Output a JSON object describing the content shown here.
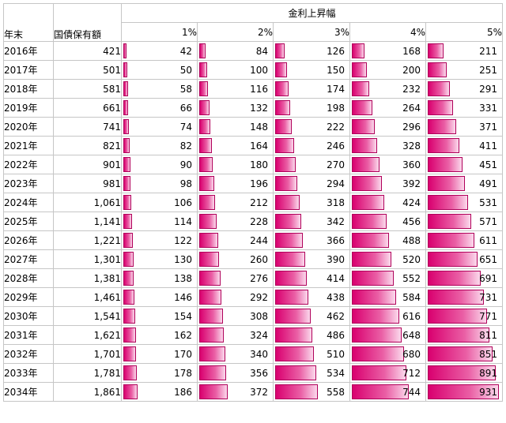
{
  "header": {
    "year_label": "年末",
    "holding_label": "国債保有額",
    "group_label": "金利上昇幅"
  },
  "rate_columns": [
    "1%",
    "2%",
    "3%",
    "4%",
    "5%"
  ],
  "bar_color": "#d9006f",
  "rows": [
    {
      "year": "2016年",
      "holding": "421",
      "values": [
        "42",
        "84",
        "126",
        "168",
        "211"
      ]
    },
    {
      "year": "2017年",
      "holding": "501",
      "values": [
        "50",
        "100",
        "150",
        "200",
        "251"
      ]
    },
    {
      "year": "2018年",
      "holding": "581",
      "values": [
        "58",
        "116",
        "174",
        "232",
        "291"
      ]
    },
    {
      "year": "2019年",
      "holding": "661",
      "values": [
        "66",
        "132",
        "198",
        "264",
        "331"
      ]
    },
    {
      "year": "2020年",
      "holding": "741",
      "values": [
        "74",
        "148",
        "222",
        "296",
        "371"
      ]
    },
    {
      "year": "2021年",
      "holding": "821",
      "values": [
        "82",
        "164",
        "246",
        "328",
        "411"
      ]
    },
    {
      "year": "2022年",
      "holding": "901",
      "values": [
        "90",
        "180",
        "270",
        "360",
        "451"
      ]
    },
    {
      "year": "2023年",
      "holding": "981",
      "values": [
        "98",
        "196",
        "294",
        "392",
        "491"
      ]
    },
    {
      "year": "2024年",
      "holding": "1,061",
      "values": [
        "106",
        "212",
        "318",
        "424",
        "531"
      ]
    },
    {
      "year": "2025年",
      "holding": "1,141",
      "values": [
        "114",
        "228",
        "342",
        "456",
        "571"
      ]
    },
    {
      "year": "2026年",
      "holding": "1,221",
      "values": [
        "122",
        "244",
        "366",
        "488",
        "611"
      ]
    },
    {
      "year": "2027年",
      "holding": "1,301",
      "values": [
        "130",
        "260",
        "390",
        "520",
        "651"
      ]
    },
    {
      "year": "2028年",
      "holding": "1,381",
      "values": [
        "138",
        "276",
        "414",
        "552",
        "691"
      ]
    },
    {
      "year": "2029年",
      "holding": "1,461",
      "values": [
        "146",
        "292",
        "438",
        "584",
        "731"
      ]
    },
    {
      "year": "2030年",
      "holding": "1,541",
      "values": [
        "154",
        "308",
        "462",
        "616",
        "771"
      ]
    },
    {
      "year": "2031年",
      "holding": "1,621",
      "values": [
        "162",
        "324",
        "486",
        "648",
        "811"
      ]
    },
    {
      "year": "2032年",
      "holding": "1,701",
      "values": [
        "170",
        "340",
        "510",
        "680",
        "851"
      ]
    },
    {
      "year": "2033年",
      "holding": "1,781",
      "values": [
        "178",
        "356",
        "534",
        "712",
        "891"
      ]
    },
    {
      "year": "2034年",
      "holding": "1,861",
      "values": [
        "186",
        "372",
        "558",
        "744",
        "931"
      ]
    }
  ]
}
